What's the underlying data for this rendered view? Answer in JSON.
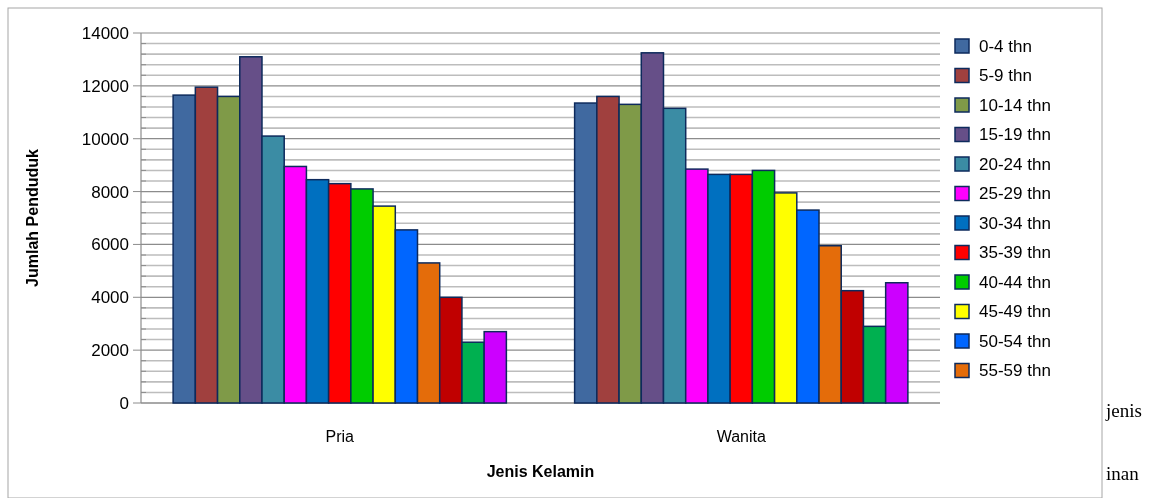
{
  "chart_data": {
    "type": "bar",
    "xlabel": "Jenis Kelamin",
    "ylabel": "Jumlah Penduduk",
    "categories": [
      "Pria",
      "Wanita"
    ],
    "series": [
      {
        "name": "0-4 thn",
        "color": "#4069a0",
        "values": [
          11650,
          11350
        ]
      },
      {
        "name": "5-9 thn",
        "color": "#a0403e",
        "values": [
          11950,
          11600
        ]
      },
      {
        "name": "10-14 thn",
        "color": "#7f9a48",
        "values": [
          11600,
          11300
        ]
      },
      {
        "name": "15-19 thn",
        "color": "#664f88",
        "values": [
          13100,
          13250
        ]
      },
      {
        "name": "20-24 thn",
        "color": "#3b8ca4",
        "values": [
          10100,
          11150
        ]
      },
      {
        "name": "25-29 thn",
        "color": "#ff00ff",
        "values": [
          8950,
          8850
        ]
      },
      {
        "name": "30-34 thn",
        "color": "#0070c0",
        "values": [
          8450,
          8650
        ]
      },
      {
        "name": "35-39 thn",
        "color": "#ff0000",
        "values": [
          8300,
          8650
        ]
      },
      {
        "name": "40-44 thn",
        "color": "#00cc00",
        "values": [
          8100,
          8800
        ]
      },
      {
        "name": "45-49 thn",
        "color": "#ffff00",
        "values": [
          7450,
          7950
        ]
      },
      {
        "name": "50-54 thn",
        "color": "#0066ff",
        "values": [
          6550,
          7300
        ]
      },
      {
        "name": "55-59 thn",
        "color": "#e46c0a",
        "values": [
          5300,
          5950
        ]
      },
      {
        "color": "#c00000",
        "values": [
          4000,
          4250
        ]
      },
      {
        "color": "#00b050",
        "values": [
          2300,
          2900
        ]
      },
      {
        "color": "#cc00ff",
        "values": [
          2700,
          4550
        ]
      }
    ],
    "ylim": [
      0,
      14000
    ],
    "yticks": [
      0,
      {
        "value": 400,
        "label": null
      },
      {
        "value": 800,
        "label": null
      },
      {
        "value": 1200,
        "label": null
      },
      {
        "value": 1600,
        "label": null
      },
      2000,
      {
        "value": 2400,
        "label": null
      },
      {
        "value": 2800,
        "label": null
      },
      {
        "value": 3200,
        "label": null
      },
      {
        "value": 3600,
        "label": null
      },
      4000,
      {
        "value": 4400,
        "label": null
      },
      {
        "value": 4800,
        "label": null
      },
      {
        "value": 5200,
        "label": null
      },
      {
        "value": 5600,
        "label": null
      },
      6000,
      {
        "value": 6400,
        "label": null
      },
      {
        "value": 6800,
        "label": null
      },
      {
        "value": 7200,
        "label": null
      },
      {
        "value": 7600,
        "label": null
      },
      8000,
      {
        "value": 8400,
        "label": null
      },
      {
        "value": 8800,
        "label": null
      },
      {
        "value": 9200,
        "label": null
      },
      {
        "value": 9600,
        "label": null
      },
      10000,
      {
        "value": 10400,
        "label": null
      },
      {
        "value": 10800,
        "label": null
      },
      {
        "value": 11200,
        "label": null
      },
      {
        "value": 11600,
        "label": null
      },
      12000,
      {
        "value": 12400,
        "label": null
      },
      {
        "value": 12800,
        "label": null
      },
      {
        "value": 13200,
        "label": null
      },
      {
        "value": 13600,
        "label": null
      },
      14000
    ],
    "grid": "y",
    "legend": "right",
    "annotations": [
      "jenis",
      "inan"
    ]
  }
}
